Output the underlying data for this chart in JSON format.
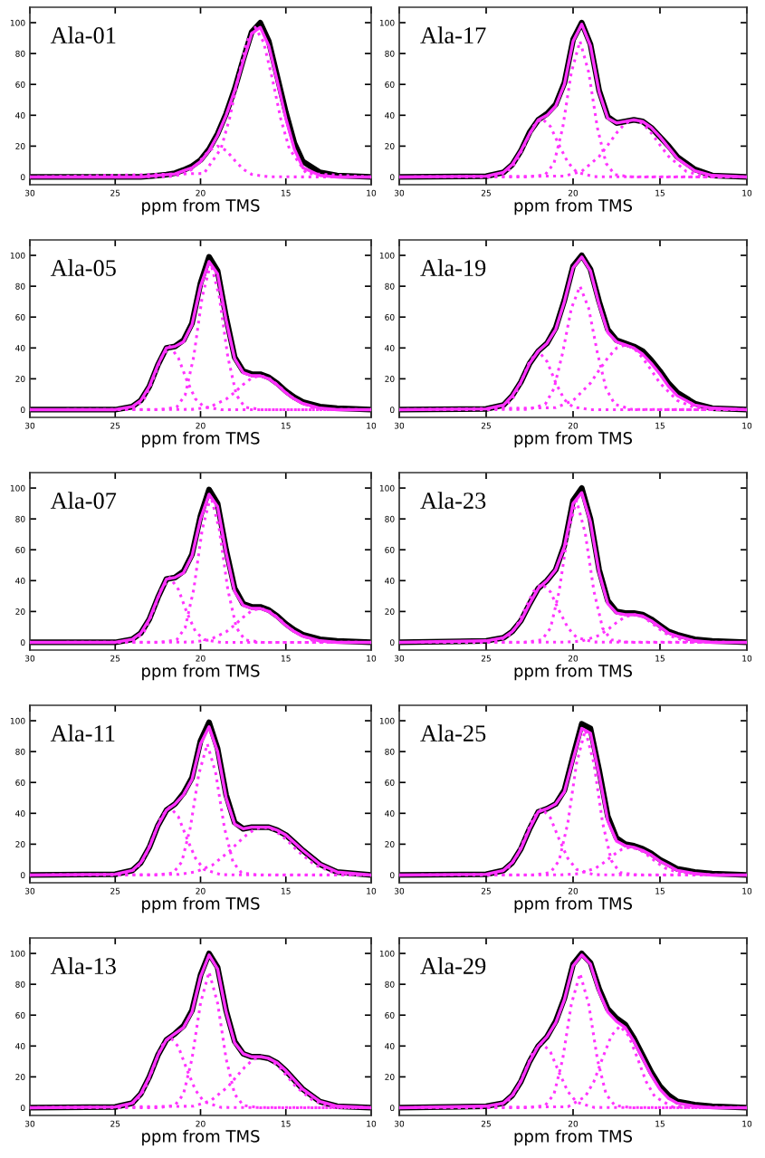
{
  "chart_data": [
    {
      "type": "line",
      "title": "Ala-01",
      "xlabel": "ppm from TMS",
      "xlim": [
        30,
        10
      ],
      "ylim": [
        -5,
        110
      ],
      "xticks": [
        30,
        25,
        20,
        15,
        10
      ],
      "yticks": [
        0,
        20,
        40,
        60,
        80,
        100
      ],
      "grid": false,
      "marker": "none",
      "x": [
        30,
        25,
        24,
        23.5,
        23,
        22.5,
        22,
        21.5,
        21,
        20.5,
        20,
        19.5,
        19,
        18.5,
        18,
        17.5,
        17,
        16.5,
        16,
        15.5,
        15,
        14.5,
        14,
        13,
        12,
        10
      ],
      "series": [
        {
          "color": "#000000",
          "line_style": "solid",
          "values": [
            0,
            0,
            0,
            0,
            0.5,
            1,
            1.5,
            2.5,
            4.5,
            7,
            11,
            18,
            28,
            41,
            57,
            76,
            94,
            100,
            88,
            65,
            42,
            22,
            10,
            3,
            1,
            0
          ]
        },
        {
          "color": "#ff33ff",
          "line_style": "solid",
          "values": [
            0,
            0,
            0,
            0,
            0.5,
            1,
            1.5,
            2,
            4,
            6,
            10,
            17,
            27,
            40,
            56,
            75,
            93,
            97,
            85,
            62,
            38,
            18,
            6,
            1,
            0,
            0
          ]
        },
        {
          "color": "#ff33ff",
          "line_style": "dotted",
          "x": [
            30,
            22,
            21,
            20.5,
            20,
            19.5,
            19,
            18.5,
            18,
            17.5,
            17,
            16,
            10
          ],
          "values": [
            0,
            0.1,
            1.7,
            5,
            10.8,
            17.2,
            20,
            17.2,
            10.8,
            5,
            1.7,
            0.1,
            0
          ]
        },
        {
          "color": "#ff33ff",
          "line_style": "dotted",
          "x": [
            30,
            19.8,
            18.8,
            18.3,
            17.8,
            17.3,
            16.8,
            16.3,
            15.8,
            15.3,
            14.8,
            13.8,
            10
          ],
          "values": [
            0,
            2.3,
            18.4,
            37.8,
            64,
            87.3,
            97,
            87.3,
            64,
            37.8,
            18.4,
            2.3,
            0
          ]
        }
      ]
    },
    {
      "type": "line",
      "title": "Ala-17",
      "xlabel": "ppm from TMS",
      "xlim": [
        30,
        10
      ],
      "ylim": [
        -5,
        110
      ],
      "xticks": [
        30,
        25,
        20,
        15,
        10
      ],
      "yticks": [
        0,
        20,
        40,
        60,
        80,
        100
      ],
      "grid": false,
      "marker": "none",
      "x": [
        30,
        25,
        24,
        23.5,
        23,
        22.5,
        22,
        21.5,
        21,
        20.5,
        20,
        19.5,
        19,
        18.5,
        18,
        17.5,
        17,
        16.5,
        16,
        15.5,
        15,
        14.5,
        14,
        13,
        12,
        10
      ],
      "series": [
        {
          "color": "#000000",
          "line_style": "solid",
          "values": [
            0,
            0.5,
            3,
            8,
            17,
            29,
            37,
            41,
            47,
            61,
            89,
            100,
            86,
            56,
            39,
            35,
            36,
            37,
            36,
            32,
            26,
            20,
            13,
            5,
            1,
            0
          ]
        },
        {
          "color": "#ff33ff",
          "line_style": "solid",
          "values": [
            0,
            0.5,
            3,
            8,
            17,
            28,
            37,
            40,
            46,
            60,
            88,
            99,
            85,
            55,
            38,
            35,
            36,
            37,
            36,
            32,
            26,
            19,
            12,
            4,
            1,
            0
          ]
        },
        {
          "color": "#ff33ff",
          "line_style": "dotted",
          "x": [
            30,
            24.8,
            23.8,
            23.3,
            22.8,
            22.3,
            21.8,
            21.3,
            20.8,
            20.3,
            19.8,
            18.8,
            10
          ],
          "values": [
            0,
            0.2,
            3.2,
            9.5,
            20.5,
            32.7,
            38,
            32.7,
            20.5,
            9.5,
            3.2,
            0.2,
            0
          ]
        },
        {
          "color": "#ff33ff",
          "line_style": "dotted",
          "x": [
            30,
            22.6,
            21.6,
            21.1,
            20.6,
            20.1,
            19.6,
            19.1,
            18.6,
            18.1,
            17.6,
            16.6,
            10
          ],
          "values": [
            0,
            0,
            1.5,
            8.8,
            31.7,
            67.8,
            88,
            67.8,
            31.7,
            8.8,
            1.5,
            0,
            0
          ]
        },
        {
          "color": "#ff33ff",
          "line_style": "dotted",
          "x": [
            30,
            20.5,
            19.5,
            18.5,
            18,
            17.5,
            17,
            16.5,
            16,
            15.5,
            15,
            14.5,
            13.5,
            12.5,
            10
          ],
          "values": [
            0,
            0.6,
            3.7,
            13.3,
            20.7,
            28.5,
            34.8,
            37,
            34.8,
            28.5,
            20.7,
            13.3,
            3.7,
            0.6,
            0
          ]
        }
      ]
    },
    {
      "type": "line",
      "title": "Ala-05",
      "xlabel": "ppm from TMS",
      "xlim": [
        30,
        10
      ],
      "ylim": [
        -5,
        110
      ],
      "xticks": [
        30,
        25,
        20,
        15,
        10
      ],
      "yticks": [
        0,
        20,
        40,
        60,
        80,
        100
      ],
      "grid": false,
      "marker": "none",
      "x": [
        30,
        25,
        24,
        23.5,
        23,
        22.5,
        22,
        21.5,
        21,
        20.5,
        20,
        19.5,
        19,
        18.5,
        18,
        17.5,
        17,
        16.5,
        16,
        15.5,
        15,
        14.5,
        14,
        13,
        12,
        10
      ],
      "series": [
        {
          "color": "#000000",
          "line_style": "solid",
          "values": [
            0,
            0,
            2,
            6,
            15,
            29,
            40,
            41,
            45,
            56,
            82,
            99,
            90,
            60,
            34,
            25,
            23,
            23,
            21,
            17,
            12,
            8,
            5,
            2,
            1,
            0
          ]
        },
        {
          "color": "#ff33ff",
          "line_style": "solid",
          "values": [
            0,
            0,
            2,
            6,
            15,
            29,
            40,
            41,
            44,
            55,
            80,
            96,
            88,
            58,
            33,
            24,
            22,
            22,
            20,
            16,
            11,
            7,
            4,
            1,
            0,
            0
          ]
        },
        {
          "color": "#ff33ff",
          "line_style": "dotted",
          "x": [
            30,
            24.8,
            23.8,
            23.3,
            22.8,
            22.3,
            21.8,
            21.3,
            20.8,
            20.3,
            19.8,
            18.8,
            10
          ],
          "values": [
            0,
            0,
            1.8,
            7,
            18.9,
            33.6,
            41,
            33.6,
            18.9,
            7,
            1.8,
            0,
            0
          ]
        },
        {
          "color": "#ff33ff",
          "line_style": "dotted",
          "x": [
            30,
            22.4,
            21.4,
            20.9,
            20.4,
            19.9,
            19.4,
            18.9,
            18.4,
            17.9,
            17.4,
            16.4,
            10
          ],
          "values": [
            0,
            0,
            1.6,
            9.5,
            34.2,
            73.2,
            95,
            73.2,
            34.2,
            9.5,
            1.6,
            0,
            0
          ]
        },
        {
          "color": "#ff33ff",
          "line_style": "dotted",
          "x": [
            30,
            20.5,
            19.5,
            18.5,
            18,
            17.5,
            17,
            16.5,
            16,
            15.5,
            15,
            14.5,
            13.5,
            12.5,
            10
          ],
          "values": [
            0,
            0.2,
            1.5,
            6.8,
            11.2,
            16.3,
            20.5,
            22,
            20.5,
            16.3,
            11.2,
            6.8,
            1.5,
            0.2,
            0
          ]
        }
      ]
    },
    {
      "type": "line",
      "title": "Ala-19",
      "xlabel": "ppm from TMS",
      "xlim": [
        30,
        10
      ],
      "ylim": [
        -5,
        110
      ],
      "xticks": [
        30,
        25,
        20,
        15,
        10
      ],
      "yticks": [
        0,
        20,
        40,
        60,
        80,
        100
      ],
      "grid": false,
      "marker": "none",
      "x": [
        30,
        25,
        24,
        23.5,
        23,
        22.5,
        22,
        21.5,
        21,
        20.5,
        20,
        19.5,
        19,
        18.5,
        18,
        17.5,
        17,
        16.5,
        16,
        15.5,
        15,
        14.5,
        14,
        13,
        12,
        10
      ],
      "series": [
        {
          "color": "#000000",
          "line_style": "solid",
          "values": [
            0,
            0.5,
            3,
            9,
            18,
            30,
            38,
            43,
            53,
            71,
            93,
            100,
            91,
            70,
            52,
            45,
            43,
            41,
            38,
            32,
            25,
            17,
            11,
            4,
            1,
            0
          ]
        },
        {
          "color": "#ff33ff",
          "line_style": "solid",
          "values": [
            0,
            0.5,
            3,
            9,
            18,
            30,
            38,
            43,
            52,
            70,
            92,
            99,
            90,
            68,
            50,
            44,
            42,
            40,
            36,
            30,
            23,
            15,
            9,
            3,
            1,
            0
          ]
        },
        {
          "color": "#ff33ff",
          "line_style": "dotted",
          "x": [
            30,
            25,
            24,
            23.5,
            23,
            22.5,
            22,
            21.5,
            21,
            20.5,
            20,
            19,
            10
          ],
          "values": [
            0,
            0,
            1.7,
            6.5,
            17.5,
            31.2,
            38,
            31.2,
            17.5,
            6.5,
            1.7,
            0,
            0
          ]
        },
        {
          "color": "#ff33ff",
          "line_style": "dotted",
          "x": [
            30,
            22.6,
            21.6,
            21.1,
            20.6,
            20.1,
            19.6,
            19.1,
            18.6,
            18.1,
            17.6,
            16.6,
            10
          ],
          "values": [
            0,
            0.1,
            3.5,
            13.6,
            36.8,
            65.6,
            80,
            65.6,
            36.8,
            13.6,
            3.5,
            0.1,
            0
          ]
        },
        {
          "color": "#ff33ff",
          "line_style": "dotted",
          "x": [
            30,
            21,
            20,
            19,
            18.5,
            18,
            17.5,
            17,
            16.5,
            16,
            15.5,
            15,
            14,
            13,
            10
          ],
          "values": [
            0,
            1.3,
            5.9,
            17.2,
            25.6,
            33.6,
            39.9,
            42,
            39.9,
            33.6,
            25.6,
            17.2,
            5.9,
            1.3,
            0
          ]
        }
      ]
    },
    {
      "type": "line",
      "title": "Ala-07",
      "xlabel": "ppm from TMS",
      "xlim": [
        30,
        10
      ],
      "ylim": [
        -5,
        110
      ],
      "xticks": [
        30,
        25,
        20,
        15,
        10
      ],
      "yticks": [
        0,
        20,
        40,
        60,
        80,
        100
      ],
      "grid": false,
      "marker": "none",
      "x": [
        30,
        25,
        24,
        23.5,
        23,
        22.5,
        22,
        21.5,
        21,
        20.5,
        20,
        19.5,
        19,
        18.5,
        18,
        17.5,
        17,
        16.5,
        16,
        15.5,
        15,
        14.5,
        14,
        13,
        12,
        10
      ],
      "series": [
        {
          "color": "#000000",
          "line_style": "solid",
          "values": [
            0,
            0,
            2,
            6,
            15,
            29,
            41,
            42,
            46,
            57,
            82,
            99,
            90,
            60,
            35,
            25,
            23,
            23,
            21,
            17,
            12,
            8,
            5,
            2,
            1,
            0
          ]
        },
        {
          "color": "#ff33ff",
          "line_style": "solid",
          "values": [
            0,
            0,
            2,
            6,
            15,
            29,
            41,
            42,
            45,
            56,
            80,
            96,
            88,
            58,
            33,
            24,
            22,
            22,
            20,
            16,
            11,
            7,
            4,
            1,
            0,
            0
          ]
        },
        {
          "color": "#ff33ff",
          "line_style": "dotted",
          "x": [
            30,
            24.8,
            23.8,
            23.3,
            22.8,
            22.3,
            21.8,
            21.3,
            20.8,
            20.3,
            19.8,
            18.8,
            10
          ],
          "values": [
            0,
            0,
            1.8,
            7.1,
            19.3,
            34.4,
            42,
            34.4,
            19.3,
            7.1,
            1.8,
            0,
            0
          ]
        },
        {
          "color": "#ff33ff",
          "line_style": "dotted",
          "x": [
            30,
            22.4,
            21.4,
            20.9,
            20.4,
            19.9,
            19.4,
            18.9,
            18.4,
            17.9,
            17.4,
            16.4,
            10
          ],
          "values": [
            0,
            0,
            1.6,
            9.5,
            34.2,
            73.2,
            95,
            73.2,
            34.2,
            9.5,
            1.6,
            0,
            0
          ]
        },
        {
          "color": "#ff33ff",
          "line_style": "dotted",
          "x": [
            30,
            20.5,
            19.5,
            18.5,
            18,
            17.5,
            17,
            16.5,
            16,
            15.5,
            15,
            14.5,
            13.5,
            12.5,
            10
          ],
          "values": [
            0,
            0.2,
            1.5,
            6.8,
            11.2,
            16.3,
            20.5,
            22,
            20.5,
            16.3,
            11.2,
            6.8,
            1.5,
            0.2,
            0
          ]
        }
      ]
    },
    {
      "type": "line",
      "title": "Ala-23",
      "xlabel": "ppm from TMS",
      "xlim": [
        30,
        10
      ],
      "ylim": [
        -5,
        110
      ],
      "xticks": [
        30,
        25,
        20,
        15,
        10
      ],
      "yticks": [
        0,
        20,
        40,
        60,
        80,
        100
      ],
      "grid": false,
      "marker": "none",
      "x": [
        30,
        25,
        24,
        23.5,
        23,
        22.5,
        22,
        21.5,
        21,
        20.5,
        20,
        19.5,
        19,
        18.5,
        18,
        17.5,
        17,
        16.5,
        16,
        15.5,
        15,
        14.5,
        14,
        13,
        12,
        10
      ],
      "series": [
        {
          "color": "#000000",
          "line_style": "solid",
          "values": [
            0,
            1,
            3,
            7,
            14,
            25,
            35,
            40,
            47,
            63,
            92,
            100,
            80,
            47,
            27,
            20,
            19,
            19,
            18,
            15,
            11,
            7,
            5,
            2,
            1,
            0
          ]
        },
        {
          "color": "#ff33ff",
          "line_style": "solid",
          "values": [
            0,
            1,
            3,
            7,
            14,
            25,
            35,
            40,
            47,
            62,
            90,
            97,
            78,
            45,
            25,
            19,
            18,
            18,
            17,
            14,
            10,
            6,
            4,
            1,
            0,
            0
          ]
        },
        {
          "color": "#ff33ff",
          "line_style": "dotted",
          "x": [
            30,
            24.8,
            23.8,
            23.3,
            22.8,
            22.3,
            21.8,
            21.3,
            20.8,
            20.3,
            19.8,
            18.8,
            10
          ],
          "values": [
            0,
            0.2,
            3.2,
            9.5,
            20.5,
            32.7,
            38,
            32.7,
            20.5,
            9.5,
            3.2,
            0.2,
            0
          ]
        },
        {
          "color": "#ff33ff",
          "line_style": "dotted",
          "x": [
            30,
            22.8,
            21.8,
            21.3,
            20.8,
            20.3,
            19.8,
            19.3,
            18.8,
            18.3,
            17.8,
            16.8,
            10
          ],
          "values": [
            0,
            0,
            1.6,
            9.2,
            33.1,
            70.8,
            92,
            70.8,
            33.1,
            9.2,
            1.6,
            0,
            0
          ]
        },
        {
          "color": "#ff33ff",
          "line_style": "dotted",
          "x": [
            30,
            20.5,
            19.5,
            18.5,
            18,
            17.5,
            17,
            16.5,
            16,
            15.5,
            15,
            14.5,
            13.5,
            12.5,
            10
          ],
          "values": [
            0,
            0.1,
            0.8,
            4.5,
            8.3,
            12.8,
            16.6,
            18,
            16.6,
            12.8,
            8.3,
            4.5,
            0.8,
            0.1,
            0
          ]
        }
      ]
    },
    {
      "type": "line",
      "title": "Ala-11",
      "xlabel": "ppm from TMS",
      "xlim": [
        30,
        10
      ],
      "ylim": [
        -5,
        110
      ],
      "xticks": [
        30,
        25,
        20,
        15,
        10
      ],
      "yticks": [
        0,
        20,
        40,
        60,
        80,
        100
      ],
      "grid": false,
      "marker": "none",
      "x": [
        30,
        25,
        24,
        23.5,
        23,
        22.5,
        22,
        21.5,
        21,
        20.5,
        20,
        19.5,
        19,
        18.5,
        18,
        17.5,
        17,
        16.5,
        16,
        15.5,
        15,
        14.5,
        14,
        13,
        12,
        10
      ],
      "series": [
        {
          "color": "#000000",
          "line_style": "solid",
          "values": [
            0,
            0.5,
            3,
            8,
            18,
            32,
            42,
            46,
            53,
            63,
            87,
            99,
            82,
            52,
            34,
            30,
            31,
            31,
            31,
            29,
            26,
            21,
            16,
            7,
            2,
            0
          ]
        },
        {
          "color": "#ff33ff",
          "line_style": "solid",
          "values": [
            0,
            0.5,
            3,
            8,
            18,
            32,
            42,
            46,
            52,
            62,
            85,
            96,
            80,
            50,
            33,
            30,
            31,
            31,
            31,
            29,
            26,
            21,
            16,
            7,
            2,
            0
          ]
        },
        {
          "color": "#ff33ff",
          "line_style": "dotted",
          "x": [
            30,
            24.8,
            23.8,
            23.3,
            22.8,
            22.3,
            21.8,
            21.3,
            20.8,
            20.3,
            19.8,
            18.8,
            10
          ],
          "values": [
            0,
            0.2,
            3.7,
            11,
            23.8,
            37.8,
            44,
            37.8,
            23.8,
            11,
            3.7,
            0.2,
            0
          ]
        },
        {
          "color": "#ff33ff",
          "line_style": "dotted",
          "x": [
            30,
            22.6,
            21.6,
            21.1,
            20.6,
            20.1,
            19.6,
            19.1,
            18.6,
            18.1,
            17.6,
            16.6,
            10
          ],
          "values": [
            0,
            0,
            1.4,
            8.5,
            30.6,
            65.5,
            85,
            65.5,
            30.6,
            8.5,
            1.4,
            0,
            0
          ]
        },
        {
          "color": "#ff33ff",
          "line_style": "dotted",
          "x": [
            30,
            21.3,
            20.3,
            19.3,
            18.3,
            17.8,
            17.3,
            16.8,
            16.3,
            15.8,
            15.3,
            14.8,
            14.3,
            13.3,
            12.3,
            11.3,
            10
          ],
          "values": [
            0,
            0.4,
            2,
            6.5,
            15.5,
            21.1,
            26,
            29.8,
            31,
            29.8,
            26,
            21.1,
            15.5,
            6.5,
            2,
            0.4,
            0
          ]
        }
      ]
    },
    {
      "type": "line",
      "title": "Ala-25",
      "xlabel": "ppm from TMS",
      "xlim": [
        30,
        10
      ],
      "ylim": [
        -5,
        110
      ],
      "xticks": [
        30,
        25,
        20,
        15,
        10
      ],
      "yticks": [
        0,
        20,
        40,
        60,
        80,
        100
      ],
      "grid": false,
      "marker": "none",
      "x": [
        30,
        25,
        24,
        23.5,
        23,
        22.5,
        22,
        21.5,
        21,
        20.5,
        20,
        19.5,
        19,
        18.5,
        18,
        17.5,
        17,
        16.5,
        16,
        15.5,
        15,
        14.5,
        14,
        13,
        12,
        10
      ],
      "series": [
        {
          "color": "#000000",
          "line_style": "solid",
          "values": [
            0,
            0.5,
            3,
            8,
            17,
            30,
            41,
            43,
            46,
            55,
            77,
            98,
            95,
            68,
            38,
            24,
            20,
            19,
            17,
            14,
            10,
            7,
            4,
            2,
            1,
            0
          ]
        },
        {
          "color": "#ff33ff",
          "line_style": "solid",
          "values": [
            0,
            0.5,
            3,
            8,
            17,
            30,
            41,
            43,
            46,
            54,
            75,
            95,
            92,
            65,
            35,
            22,
            19,
            18,
            16,
            13,
            9,
            6,
            3,
            1,
            0,
            0
          ]
        },
        {
          "color": "#ff33ff",
          "line_style": "dotted",
          "x": [
            30,
            24.8,
            23.8,
            23.3,
            22.8,
            22.3,
            21.8,
            21.3,
            20.8,
            20.3,
            19.8,
            18.8,
            10
          ],
          "values": [
            0,
            0.2,
            3.7,
            10.8,
            23.2,
            37,
            43,
            37,
            23.2,
            10.8,
            3.7,
            0.2,
            0
          ]
        },
        {
          "color": "#ff33ff",
          "line_style": "dotted",
          "x": [
            30,
            22.3,
            21.3,
            20.8,
            20.3,
            19.8,
            19.3,
            18.8,
            18.3,
            17.8,
            17.3,
            16.3,
            10
          ],
          "values": [
            0,
            0,
            1.6,
            9.4,
            33.8,
            72.4,
            94,
            72.4,
            33.8,
            9.4,
            1.6,
            0,
            0
          ]
        },
        {
          "color": "#ff33ff",
          "line_style": "dotted",
          "x": [
            30,
            20.7,
            19.7,
            18.7,
            18.2,
            17.7,
            17.2,
            16.7,
            16.2,
            15.7,
            15.2,
            14.7,
            13.7,
            12.7,
            10
          ],
          "values": [
            0,
            0.1,
            0.8,
            4.5,
            8.3,
            12.8,
            16.6,
            18,
            16.6,
            12.8,
            8.3,
            4.5,
            0.8,
            0.1,
            0
          ]
        }
      ]
    },
    {
      "type": "line",
      "title": "Ala-13",
      "xlabel": "ppm from TMS",
      "xlim": [
        30,
        10
      ],
      "ylim": [
        -5,
        110
      ],
      "xticks": [
        30,
        25,
        20,
        15,
        10
      ],
      "yticks": [
        0,
        20,
        40,
        60,
        80,
        100
      ],
      "grid": false,
      "marker": "none",
      "x": [
        30,
        25,
        24,
        23.5,
        23,
        22.5,
        22,
        21.5,
        21,
        20.5,
        20,
        19.5,
        19,
        18.5,
        18,
        17.5,
        17,
        16.5,
        16,
        15.5,
        15,
        14.5,
        14,
        13,
        12,
        10
      ],
      "series": [
        {
          "color": "#000000",
          "line_style": "solid",
          "values": [
            0,
            0.5,
            3,
            9,
            20,
            34,
            44,
            48,
            53,
            63,
            86,
            100,
            91,
            63,
            43,
            35,
            33,
            33,
            32,
            29,
            24,
            18,
            12,
            4,
            1,
            0
          ]
        },
        {
          "color": "#ff33ff",
          "line_style": "solid",
          "values": [
            0,
            0.5,
            3,
            9,
            20,
            34,
            44,
            48,
            52,
            62,
            85,
            99,
            90,
            62,
            42,
            35,
            33,
            33,
            32,
            29,
            24,
            18,
            12,
            4,
            1,
            0
          ]
        },
        {
          "color": "#ff33ff",
          "line_style": "dotted",
          "x": [
            30,
            24.8,
            23.8,
            23.3,
            22.8,
            22.3,
            21.8,
            21.3,
            20.8,
            20.3,
            19.8,
            18.8,
            10
          ],
          "values": [
            0,
            0.2,
            3.9,
            11.5,
            24.8,
            39.6,
            46,
            39.6,
            24.8,
            11.5,
            3.9,
            0.2,
            0
          ]
        },
        {
          "color": "#ff33ff",
          "line_style": "dotted",
          "x": [
            30,
            22.5,
            21.5,
            21,
            20.5,
            20,
            19.5,
            19,
            18.5,
            18,
            17.5,
            16.5,
            10
          ],
          "values": [
            0,
            0,
            1.5,
            8.8,
            31.7,
            67.8,
            88,
            67.8,
            31.7,
            8.8,
            1.5,
            0,
            0
          ]
        },
        {
          "color": "#ff33ff",
          "line_style": "dotted",
          "x": [
            30,
            20.4,
            19.4,
            18.4,
            17.9,
            17.4,
            16.9,
            16.4,
            15.9,
            15.4,
            14.9,
            14.4,
            13.4,
            12.4,
            10
          ],
          "values": [
            0,
            1,
            4.6,
            13.5,
            20.1,
            26.4,
            31.4,
            33,
            31.4,
            26.4,
            20.1,
            13.5,
            4.6,
            1,
            0
          ]
        }
      ]
    },
    {
      "type": "line",
      "title": "Ala-29",
      "xlabel": "ppm from TMS",
      "xlim": [
        30,
        10
      ],
      "ylim": [
        -5,
        110
      ],
      "xticks": [
        30,
        25,
        20,
        15,
        10
      ],
      "yticks": [
        0,
        20,
        40,
        60,
        80,
        100
      ],
      "grid": false,
      "marker": "none",
      "x": [
        30,
        25,
        24,
        23.5,
        23,
        22.5,
        22,
        21.5,
        21,
        20.5,
        20,
        19.5,
        19,
        18.5,
        18,
        17.5,
        17,
        16.5,
        16,
        15.5,
        15,
        14.5,
        14,
        13,
        12,
        10
      ],
      "series": [
        {
          "color": "#000000",
          "line_style": "solid",
          "values": [
            0,
            1,
            3,
            8,
            17,
            30,
            40,
            46,
            56,
            71,
            93,
            100,
            94,
            77,
            64,
            58,
            54,
            45,
            34,
            23,
            14,
            8,
            4,
            2,
            1,
            0
          ]
        },
        {
          "color": "#ff33ff",
          "line_style": "solid",
          "values": [
            0,
            1,
            3,
            8,
            17,
            30,
            40,
            46,
            55,
            70,
            92,
            99,
            93,
            75,
            62,
            56,
            52,
            43,
            32,
            21,
            12,
            6,
            3,
            1,
            0,
            0
          ]
        },
        {
          "color": "#ff33ff",
          "line_style": "dotted",
          "x": [
            30,
            24.8,
            23.8,
            23.3,
            22.8,
            22.3,
            21.8,
            21.3,
            20.8,
            20.3,
            19.8,
            18.8,
            10
          ],
          "values": [
            0,
            0.2,
            3.6,
            10.5,
            22.7,
            36.1,
            42,
            36.1,
            22.7,
            10.5,
            3.6,
            0.2,
            0
          ]
        },
        {
          "color": "#ff33ff",
          "line_style": "dotted",
          "x": [
            30,
            22.6,
            21.6,
            21.1,
            20.6,
            20.1,
            19.6,
            19.1,
            18.6,
            18.1,
            17.6,
            16.6,
            10
          ],
          "values": [
            0,
            0,
            1.5,
            8.7,
            31.3,
            67,
            87,
            67,
            31.3,
            8.7,
            1.5,
            0,
            0
          ]
        },
        {
          "color": "#ff33ff",
          "line_style": "dotted",
          "x": [
            30,
            20.3,
            19.3,
            18.8,
            18.3,
            17.8,
            17.3,
            16.8,
            16.3,
            15.8,
            15.3,
            14.3,
            10
          ],
          "values": [
            0,
            0.6,
            7.2,
            17,
            32.3,
            46.6,
            53,
            46.6,
            32.3,
            17,
            7.2,
            0.6,
            0
          ]
        }
      ]
    }
  ]
}
